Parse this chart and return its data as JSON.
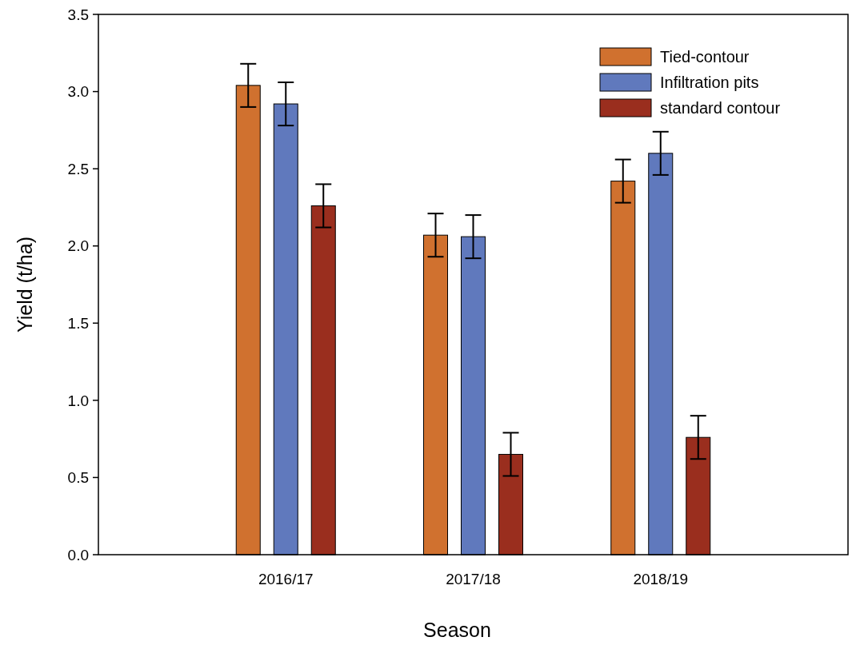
{
  "chart_data": {
    "type": "bar",
    "xlabel": "Season",
    "ylabel": "Yield (t/ha)",
    "categories": [
      "2016/17",
      "2017/18",
      "2018/19"
    ],
    "series": [
      {
        "name": "Tied-contour",
        "color": "#d0712f",
        "values": [
          3.04,
          2.07,
          2.42
        ],
        "errors": [
          0.14,
          0.14,
          0.14
        ]
      },
      {
        "name": "Infiltration pits",
        "color": "#6079bd",
        "values": [
          2.92,
          2.06,
          2.6
        ],
        "errors": [
          0.14,
          0.14,
          0.14
        ]
      },
      {
        "name": "standard contour",
        "color": "#9a2e1e",
        "values": [
          2.26,
          0.65,
          0.76
        ],
        "errors": [
          0.14,
          0.14,
          0.14
        ]
      }
    ],
    "ylim": [
      0,
      3.5
    ],
    "yticks": [
      {
        "value": 0,
        "label": "0.0"
      },
      {
        "value": 0.5,
        "label": "0.5"
      },
      {
        "value": 1,
        "label": "1.0"
      },
      {
        "value": 1.5,
        "label": "1.5"
      },
      {
        "value": 2,
        "label": "2.0"
      },
      {
        "value": 2.5,
        "label": "2.5"
      },
      {
        "value": 3,
        "label": "3.0"
      },
      {
        "value": 3.5,
        "label": "3.5"
      }
    ],
    "grid": false,
    "legend": "top right"
  }
}
